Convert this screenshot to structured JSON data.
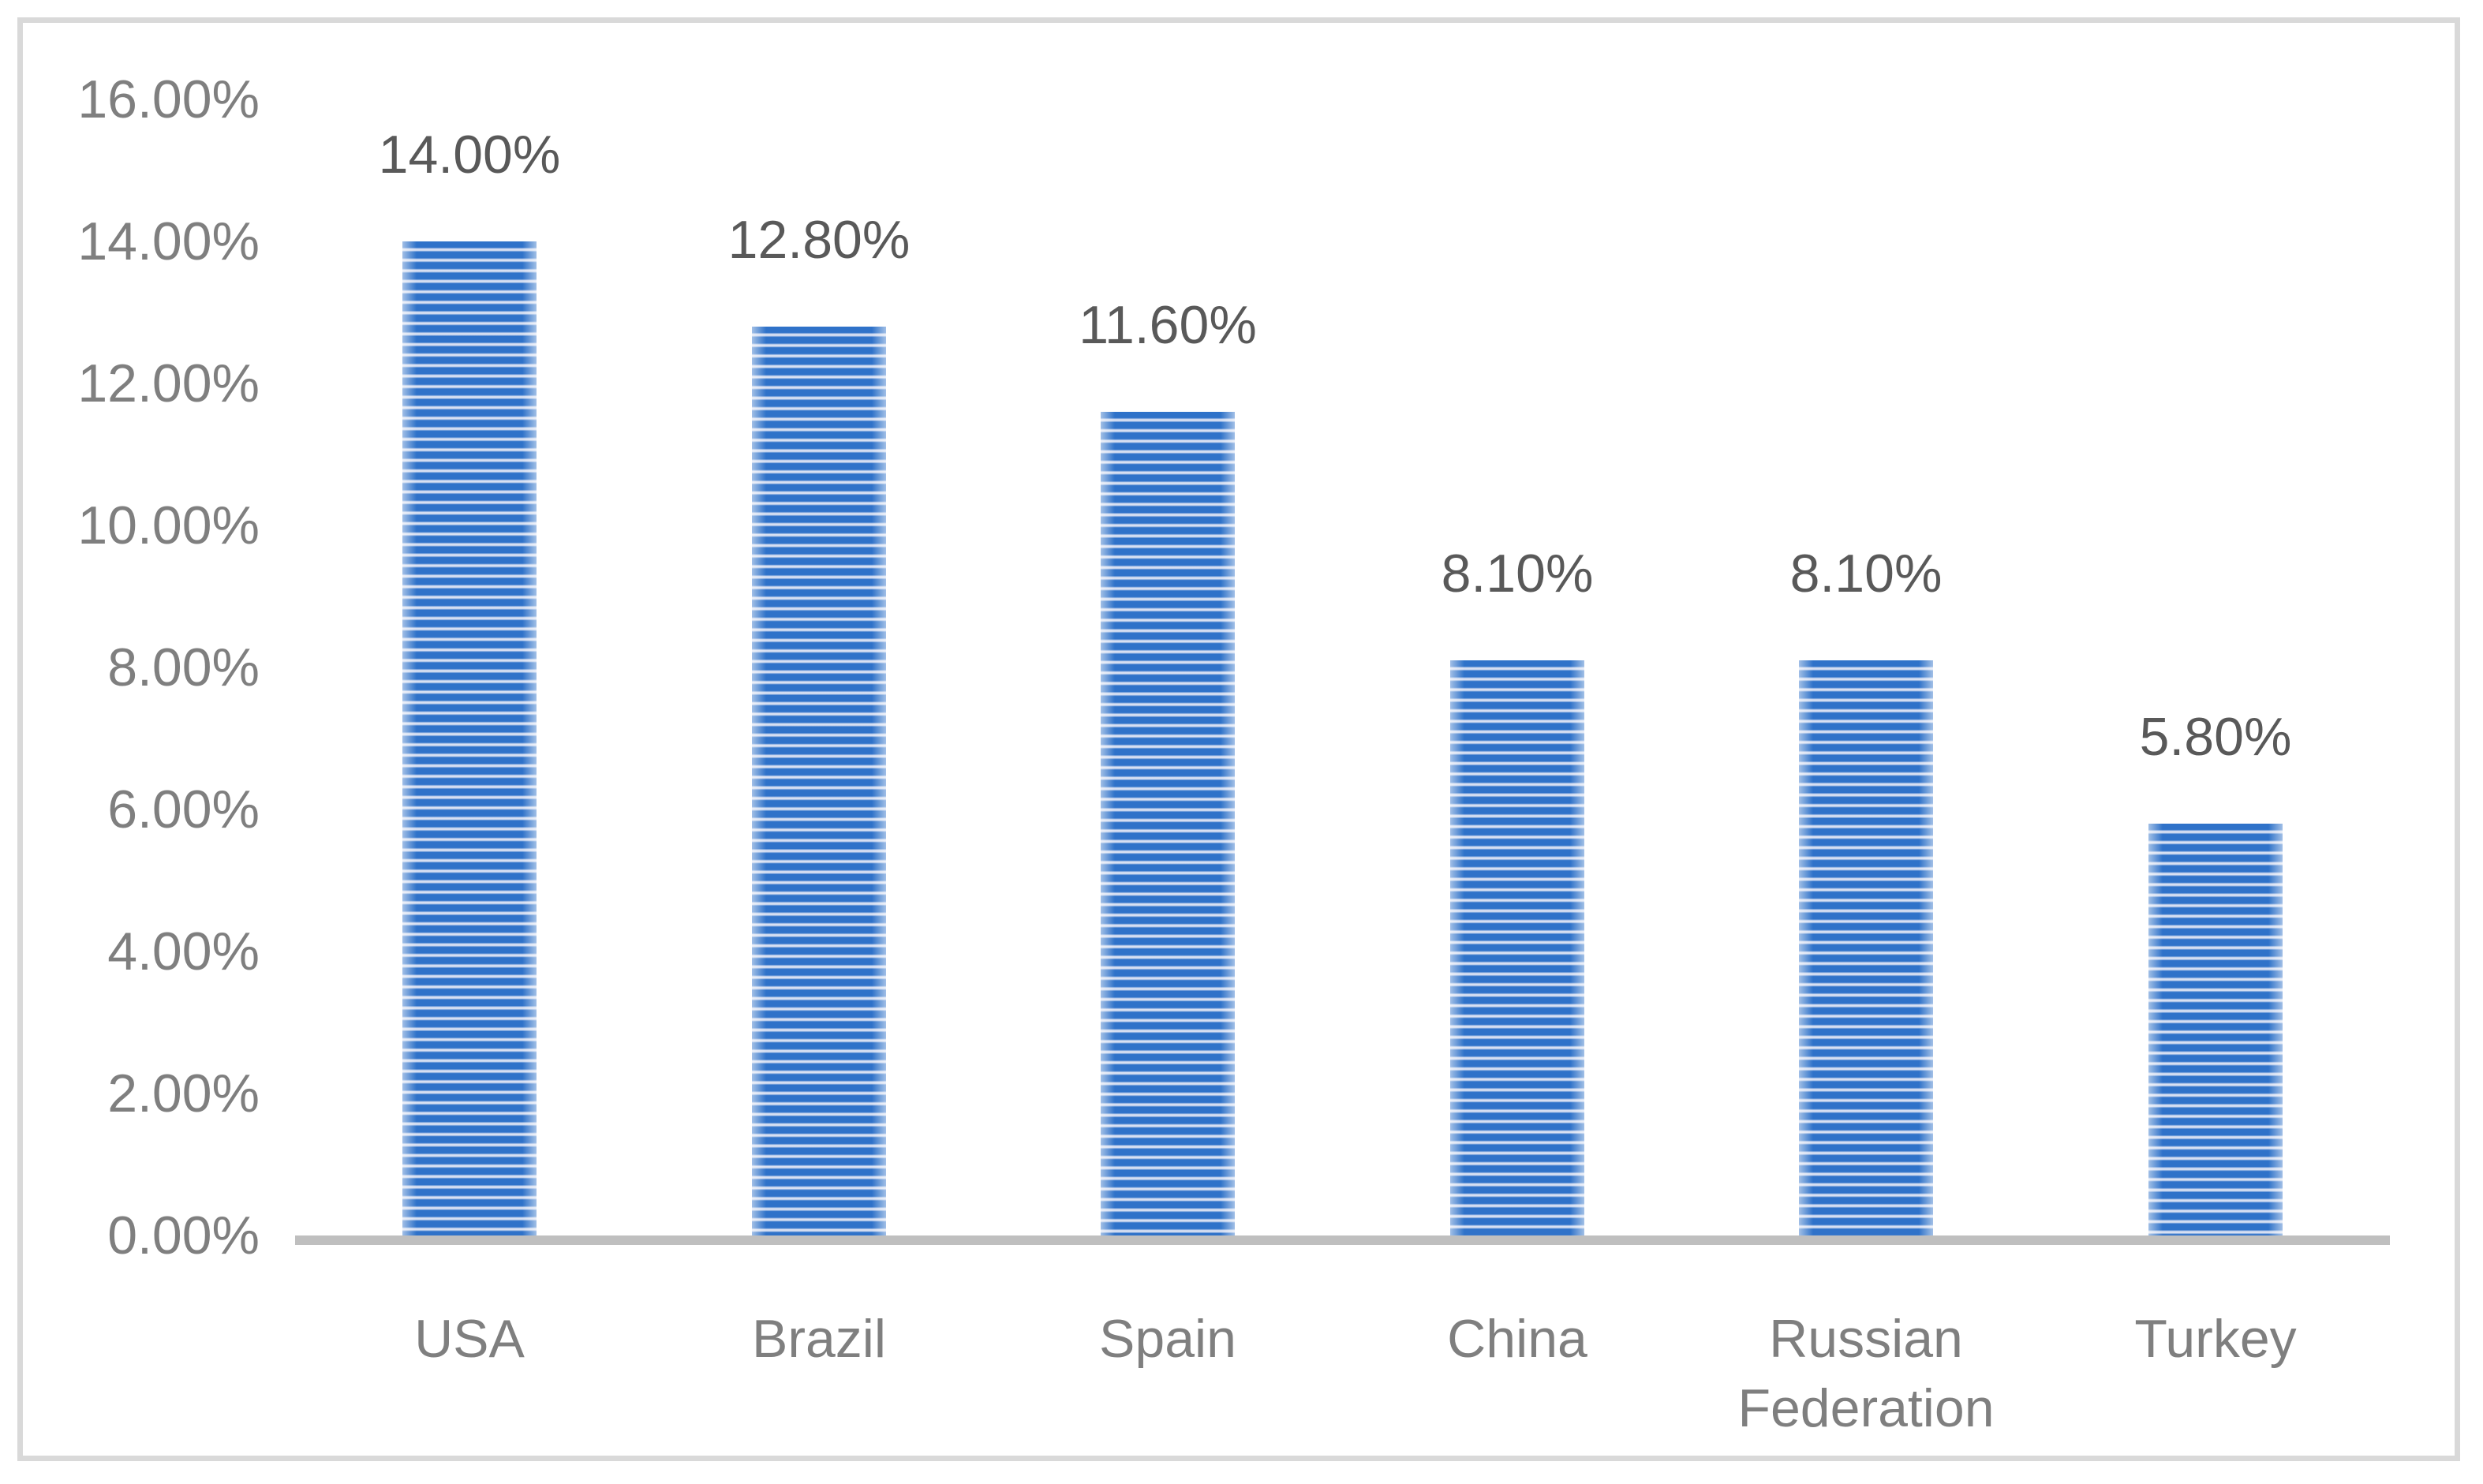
{
  "chart_data": {
    "type": "bar",
    "title": "",
    "xlabel": "",
    "ylabel": "",
    "categories": [
      "USA",
      "Brazil",
      "Spain",
      "China",
      "Russian Federation",
      "Turkey"
    ],
    "values": [
      14.0,
      12.8,
      11.6,
      8.1,
      8.1,
      5.8
    ],
    "data_labels": [
      "14.00%",
      "12.80%",
      "11.60%",
      "8.10%",
      "8.10%",
      "5.80%"
    ],
    "y_ticks": [
      "0.00%",
      "2.00%",
      "4.00%",
      "6.00%",
      "8.00%",
      "10.00%",
      "12.00%",
      "14.00%",
      "16.00%"
    ],
    "y_tick_values": [
      0,
      2,
      4,
      6,
      8,
      10,
      12,
      14,
      16
    ],
    "ylim": [
      0,
      16
    ],
    "grid": false,
    "legend": false,
    "data_label_position": "outside-end",
    "colors": {
      "bar_stripe_blue": "#2F72C9",
      "bar_stripe_light": "#D8E0F2",
      "axis_line": "#BFBFBF",
      "axis_label_text": "#7F7F7F",
      "data_label_text": "#595959",
      "frame_border": "#D9D9D9"
    }
  }
}
